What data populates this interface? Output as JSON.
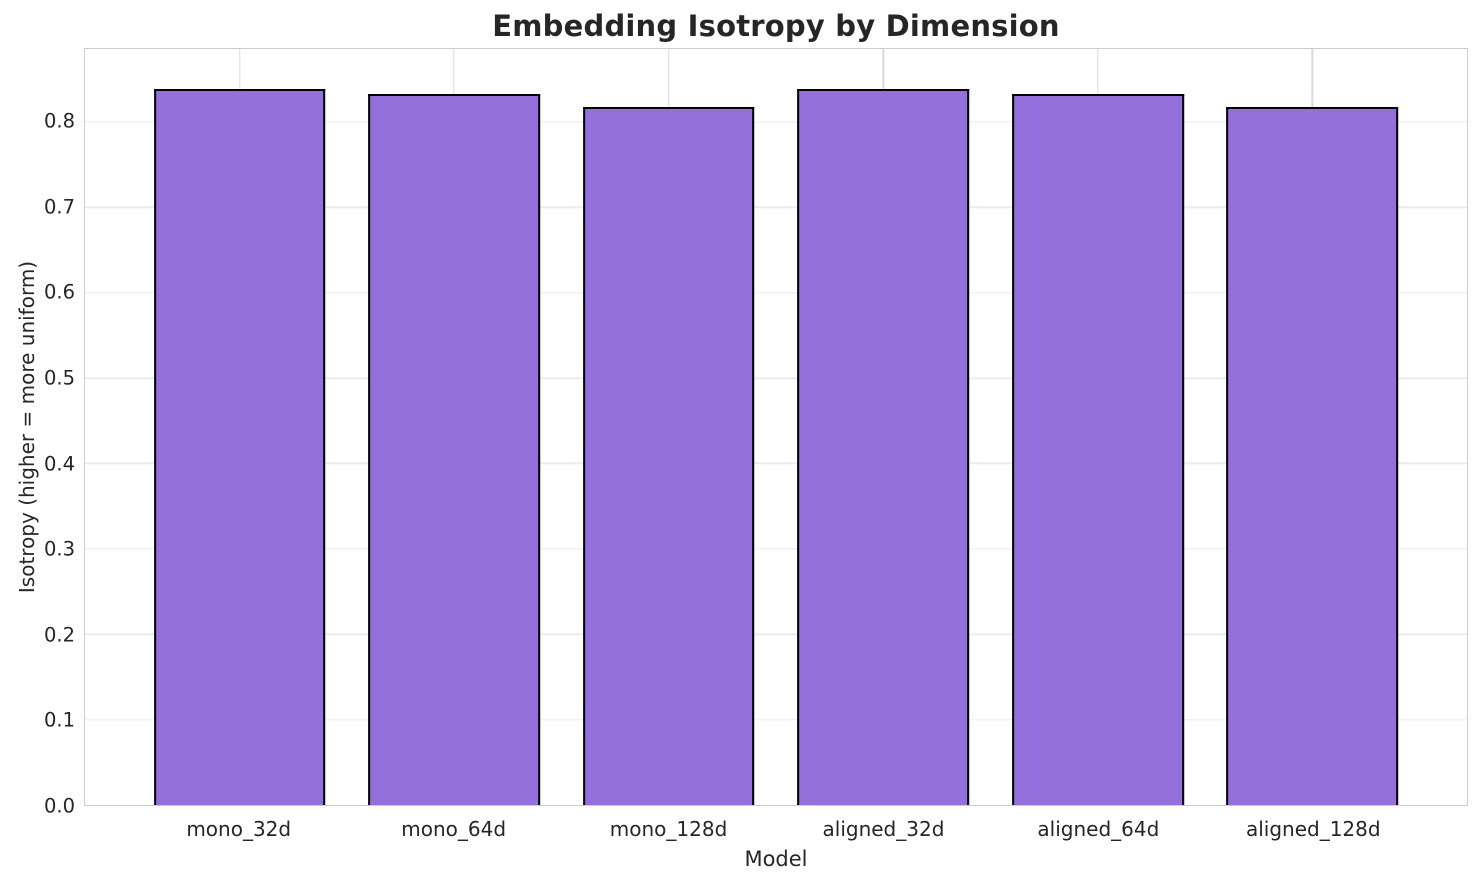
{
  "chart_data": {
    "type": "bar",
    "title": "Embedding Isotropy by Dimension",
    "xlabel": "Model",
    "ylabel": "Isotropy (higher = more uniform)",
    "categories": [
      "mono_32d",
      "mono_64d",
      "mono_128d",
      "aligned_32d",
      "aligned_64d",
      "aligned_128d"
    ],
    "values": [
      0.839,
      0.833,
      0.817,
      0.839,
      0.833,
      0.817
    ],
    "ylim": [
      0,
      0.8855
    ],
    "xlim": [
      -0.72,
      5.72
    ],
    "yticks": [
      0.0,
      0.1,
      0.2,
      0.3,
      0.4,
      0.5,
      0.6,
      0.7,
      0.8
    ],
    "ytick_labels": [
      "0.0",
      "0.1",
      "0.2",
      "0.3",
      "0.4",
      "0.5",
      "0.6",
      "0.7",
      "0.8"
    ],
    "bar_width_units": 0.8,
    "grid": true,
    "legend_position": "none",
    "colors": {
      "bar_fill": "#9370DB",
      "bar_edge": "#000000",
      "grid_horizontal": "#ececec",
      "grid_vertical": "#d9d9d9",
      "spine": "#cccccc",
      "text": "#262626",
      "background": "#ffffff"
    }
  }
}
